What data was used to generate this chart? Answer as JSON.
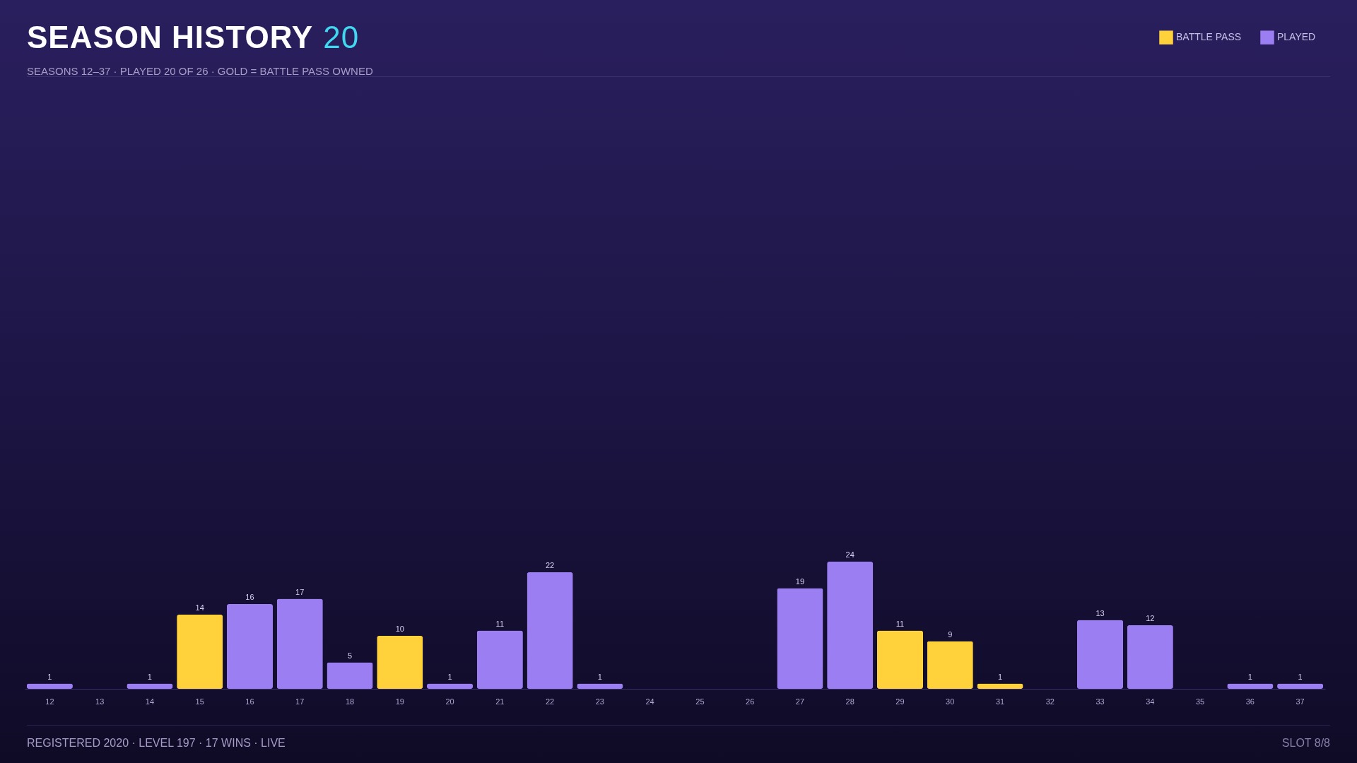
{
  "chart_data": {
    "type": "bar",
    "title": "SEASON HISTORY",
    "subtitle": "SEASONS 12–37 · PLAYED 20 OF 26 · GOLD = BATTLE PASS OWNED",
    "annotations": [
      "20",
      "REGISTERED 2020 · LEVEL 197 · 17 WINS · LIVE",
      "SLOT 8/8"
    ],
    "categories": [
      "12",
      "13",
      "14",
      "15",
      "16",
      "17",
      "18",
      "19",
      "20",
      "21",
      "22",
      "23",
      "24",
      "25",
      "26",
      "27",
      "28",
      "29",
      "30",
      "31",
      "32",
      "33",
      "34",
      "35",
      "36",
      "37"
    ],
    "stacked": true,
    "series": [
      {
        "name": "BATTLE PASS",
        "color": "#ffd23c",
        "values": [
          null,
          null,
          null,
          14,
          null,
          null,
          null,
          10,
          null,
          null,
          null,
          null,
          null,
          null,
          null,
          null,
          null,
          11,
          9,
          1,
          null,
          null,
          null,
          null,
          null,
          null
        ]
      },
      {
        "name": "PLAYED",
        "color": "#9b7ff2",
        "values": [
          1,
          null,
          1,
          null,
          16,
          17,
          5,
          null,
          1,
          11,
          22,
          1,
          null,
          null,
          null,
          19,
          24,
          null,
          null,
          null,
          null,
          13,
          12,
          null,
          1,
          1
        ]
      }
    ],
    "data_labels": true,
    "legend": "top right",
    "grid": false
  }
}
